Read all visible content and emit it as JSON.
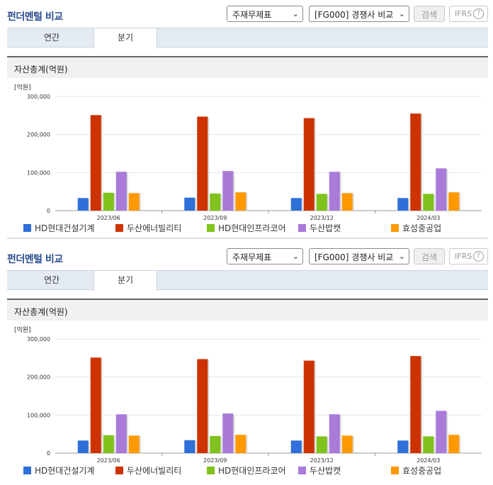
{
  "panels": [
    {
      "title": "펀더멘털 비교",
      "select1": "주재무제표",
      "select2": "[FG000] 경쟁사 비교",
      "search_label": "검색",
      "ifrs_label": "IFRS",
      "ifrs_help": "?",
      "tabs": [
        "연간",
        "분기"
      ],
      "section_title": "자산총계(억원)"
    },
    {
      "title": "펀더멘털 비교",
      "select1": "주재무제표",
      "select2": "[FG000] 경쟁사 비교",
      "search_label": "검색",
      "ifrs_label": "IFRS",
      "ifrs_help": "?",
      "tabs": [
        "연간",
        "분기"
      ],
      "section_title": "자산총계(억원)"
    }
  ],
  "colors": {
    "HD현대건설기계": "#2f6fd8",
    "두산에너빌리티": "#cc3300",
    "HD현대인프라코어": "#7fc31c",
    "두산밥캣": "#a97ad8",
    "효성중공업": "#ff9900"
  },
  "chart_data": [
    {
      "type": "bar",
      "unit_label": "[억원]",
      "categories": [
        "2023/06",
        "2023/09",
        "2023/12",
        "2024/03"
      ],
      "y_ticks": [
        "0",
        "100,000",
        "200,000",
        "300,000"
      ],
      "ylim": [
        0,
        300000
      ],
      "grid": true,
      "legend_position": "bottom",
      "series": [
        {
          "name": "HD현대건설기계",
          "values": [
            33000,
            34000,
            33000,
            33000
          ]
        },
        {
          "name": "두산에너빌리티",
          "values": [
            251000,
            247000,
            243000,
            255000
          ]
        },
        {
          "name": "HD현대인프라코어",
          "values": [
            47000,
            45000,
            44000,
            44000
          ]
        },
        {
          "name": "두산밥캣",
          "values": [
            102000,
            104000,
            102000,
            111000
          ]
        },
        {
          "name": "효성중공업",
          "values": [
            46000,
            48000,
            46000,
            48000
          ]
        }
      ]
    },
    {
      "type": "bar",
      "unit_label": "[억원]",
      "categories": [
        "2023/06",
        "2023/09",
        "2023/12",
        "2024/03"
      ],
      "y_ticks": [
        "0",
        "100,000",
        "200,000",
        "300,000"
      ],
      "ylim": [
        0,
        300000
      ],
      "grid": true,
      "legend_position": "bottom",
      "series": [
        {
          "name": "HD현대건설기계",
          "values": [
            33000,
            34000,
            33000,
            33000
          ]
        },
        {
          "name": "두산에너빌리티",
          "values": [
            251000,
            247000,
            243000,
            255000
          ]
        },
        {
          "name": "HD현대인프라코어",
          "values": [
            47000,
            45000,
            44000,
            44000
          ]
        },
        {
          "name": "두산밥캣",
          "values": [
            102000,
            104000,
            102000,
            111000
          ]
        },
        {
          "name": "효성중공업",
          "values": [
            46000,
            48000,
            46000,
            48000
          ]
        }
      ]
    }
  ]
}
